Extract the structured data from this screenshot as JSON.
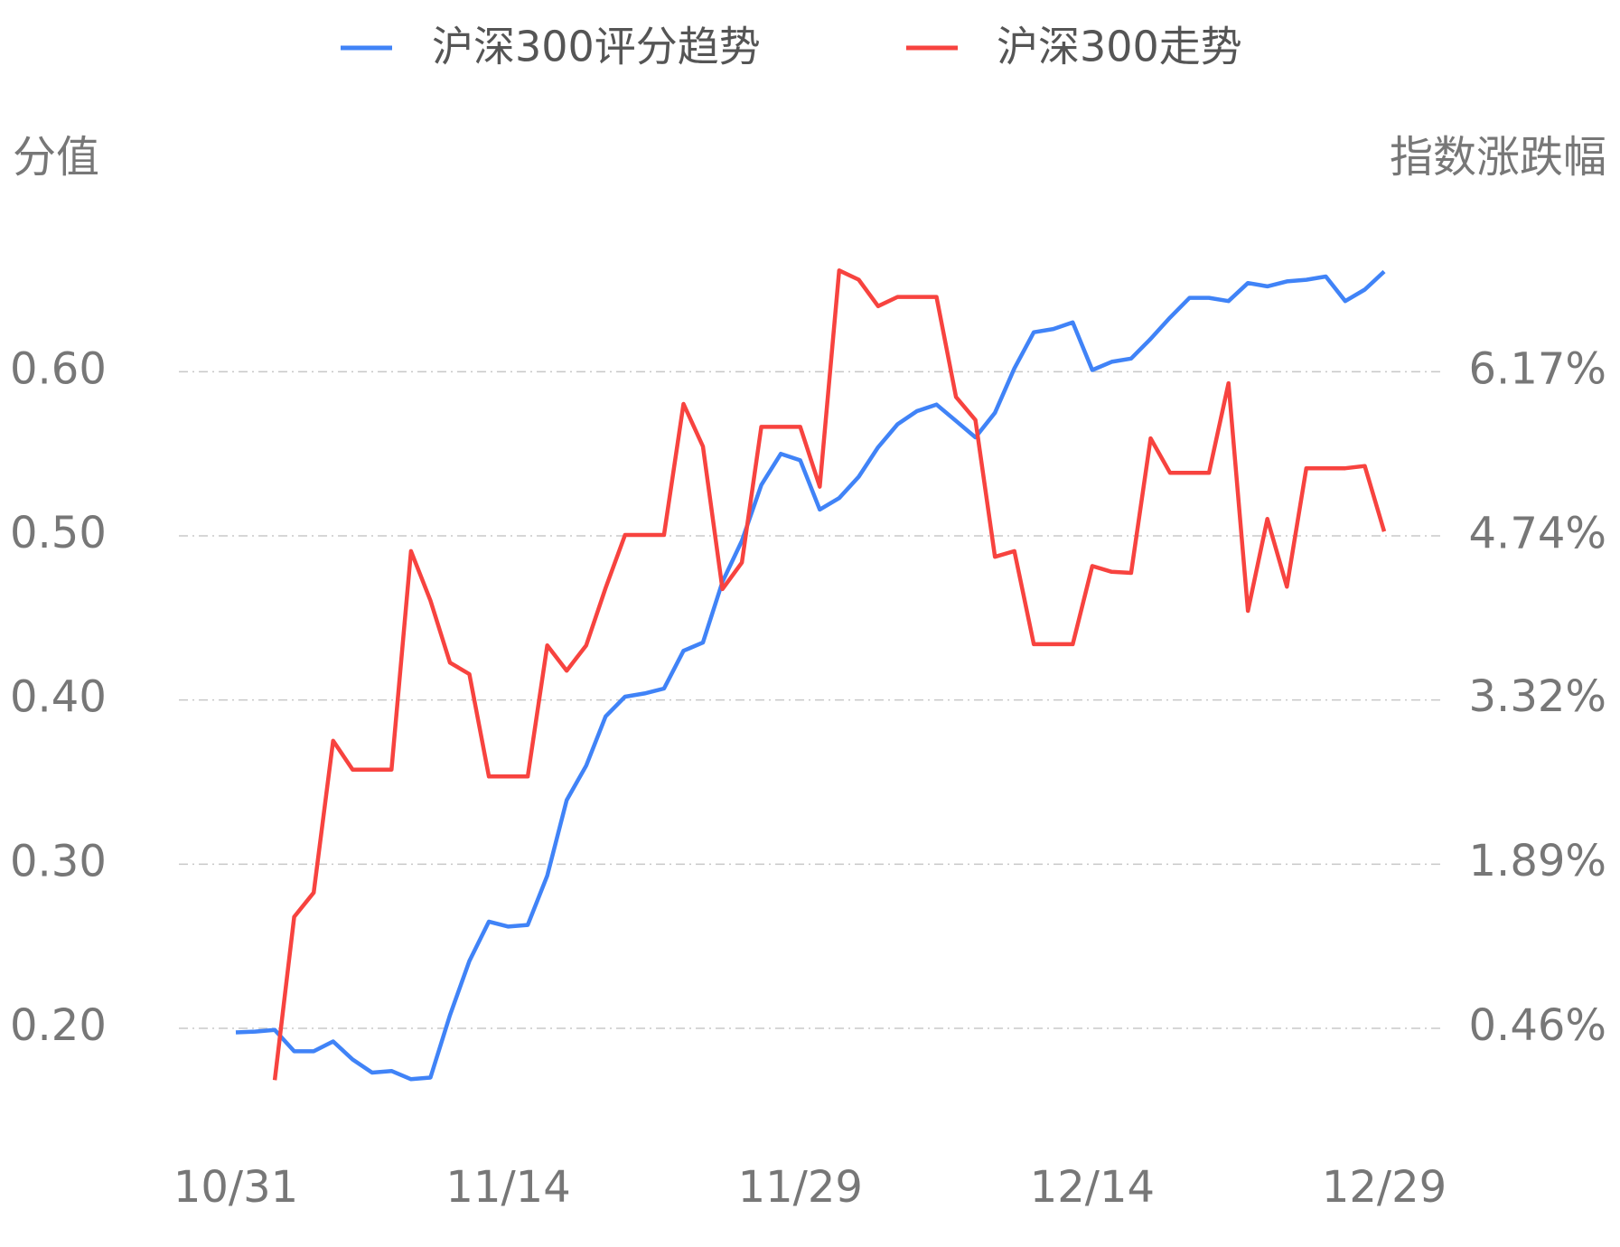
{
  "chart_data": {
    "type": "line",
    "legend_position": "top",
    "y_axis_title": "分值",
    "y2_axis_title": "指数涨跌幅",
    "categories": [
      "10/31",
      null,
      null,
      null,
      null,
      null,
      null,
      null,
      null,
      null,
      null,
      null,
      null,
      null,
      "11/14",
      null,
      null,
      null,
      null,
      null,
      null,
      null,
      null,
      null,
      null,
      null,
      null,
      null,
      null,
      "11/29",
      null,
      null,
      null,
      null,
      null,
      null,
      null,
      null,
      null,
      null,
      null,
      null,
      null,
      null,
      "12/14",
      null,
      null,
      null,
      null,
      null,
      null,
      null,
      null,
      null,
      null,
      null,
      null,
      null,
      null,
      "12/29"
    ],
    "series": [
      {
        "name": "沪深300评分趋势",
        "color": "#4083f7",
        "axis": "y",
        "values": [
          0.1975,
          0.198,
          0.199,
          0.186,
          0.186,
          0.192,
          0.181,
          0.173,
          0.174,
          0.169,
          0.17,
          0.208,
          0.241,
          0.265,
          0.262,
          0.263,
          0.293,
          0.339,
          0.36,
          0.39,
          0.402,
          0.404,
          0.407,
          0.43,
          0.435,
          0.472,
          0.497,
          0.531,
          0.55,
          0.546,
          0.516,
          0.523,
          0.536,
          0.554,
          0.568,
          0.576,
          0.58,
          0.57,
          0.56,
          0.575,
          0.602,
          0.624,
          0.626,
          0.63,
          0.601,
          0.606,
          0.608,
          0.62,
          0.633,
          0.645,
          0.645,
          0.643,
          0.654,
          0.652,
          0.655,
          0.656,
          0.658,
          0.643,
          0.65,
          0.661
        ]
      },
      {
        "name": "沪深300走势",
        "color": "#f7433f",
        "axis": "y2",
        "values": [
          null,
          null,
          0.01,
          1.43,
          1.64,
          2.96,
          2.71,
          2.71,
          2.71,
          4.61,
          4.18,
          3.64,
          3.54,
          2.65,
          2.65,
          2.65,
          3.79,
          3.57,
          3.79,
          4.29,
          4.75,
          4.75,
          4.75,
          5.89,
          5.52,
          4.28,
          4.51,
          5.69,
          5.69,
          5.69,
          5.17,
          7.05,
          6.97,
          6.74,
          6.82,
          6.82,
          6.82,
          5.95,
          5.75,
          4.56,
          4.61,
          3.8,
          3.8,
          3.8,
          4.48,
          4.43,
          4.42,
          5.59,
          5.29,
          5.29,
          5.29,
          6.07,
          4.09,
          4.89,
          4.3,
          5.33,
          5.33,
          5.33,
          5.35,
          4.78
        ]
      }
    ],
    "ylim": [
      0.14,
      0.68
    ],
    "yticks": [
      {
        "value": 0.2,
        "label": "0.20"
      },
      {
        "value": 0.3,
        "label": "0.30"
      },
      {
        "value": 0.4,
        "label": "0.40"
      },
      {
        "value": 0.5,
        "label": "0.50"
      },
      {
        "value": 0.6,
        "label": "0.60"
      }
    ],
    "y2lim": [
      -0.3965,
      7.312
    ],
    "y2ticks": [
      {
        "value": 0.46,
        "label": "0.46%"
      },
      {
        "value": 1.89,
        "label": "1.89%"
      },
      {
        "value": 3.32,
        "label": "3.32%"
      },
      {
        "value": 4.74,
        "label": "4.74%"
      },
      {
        "value": 6.17,
        "label": "6.17%"
      }
    ],
    "grid": true
  }
}
